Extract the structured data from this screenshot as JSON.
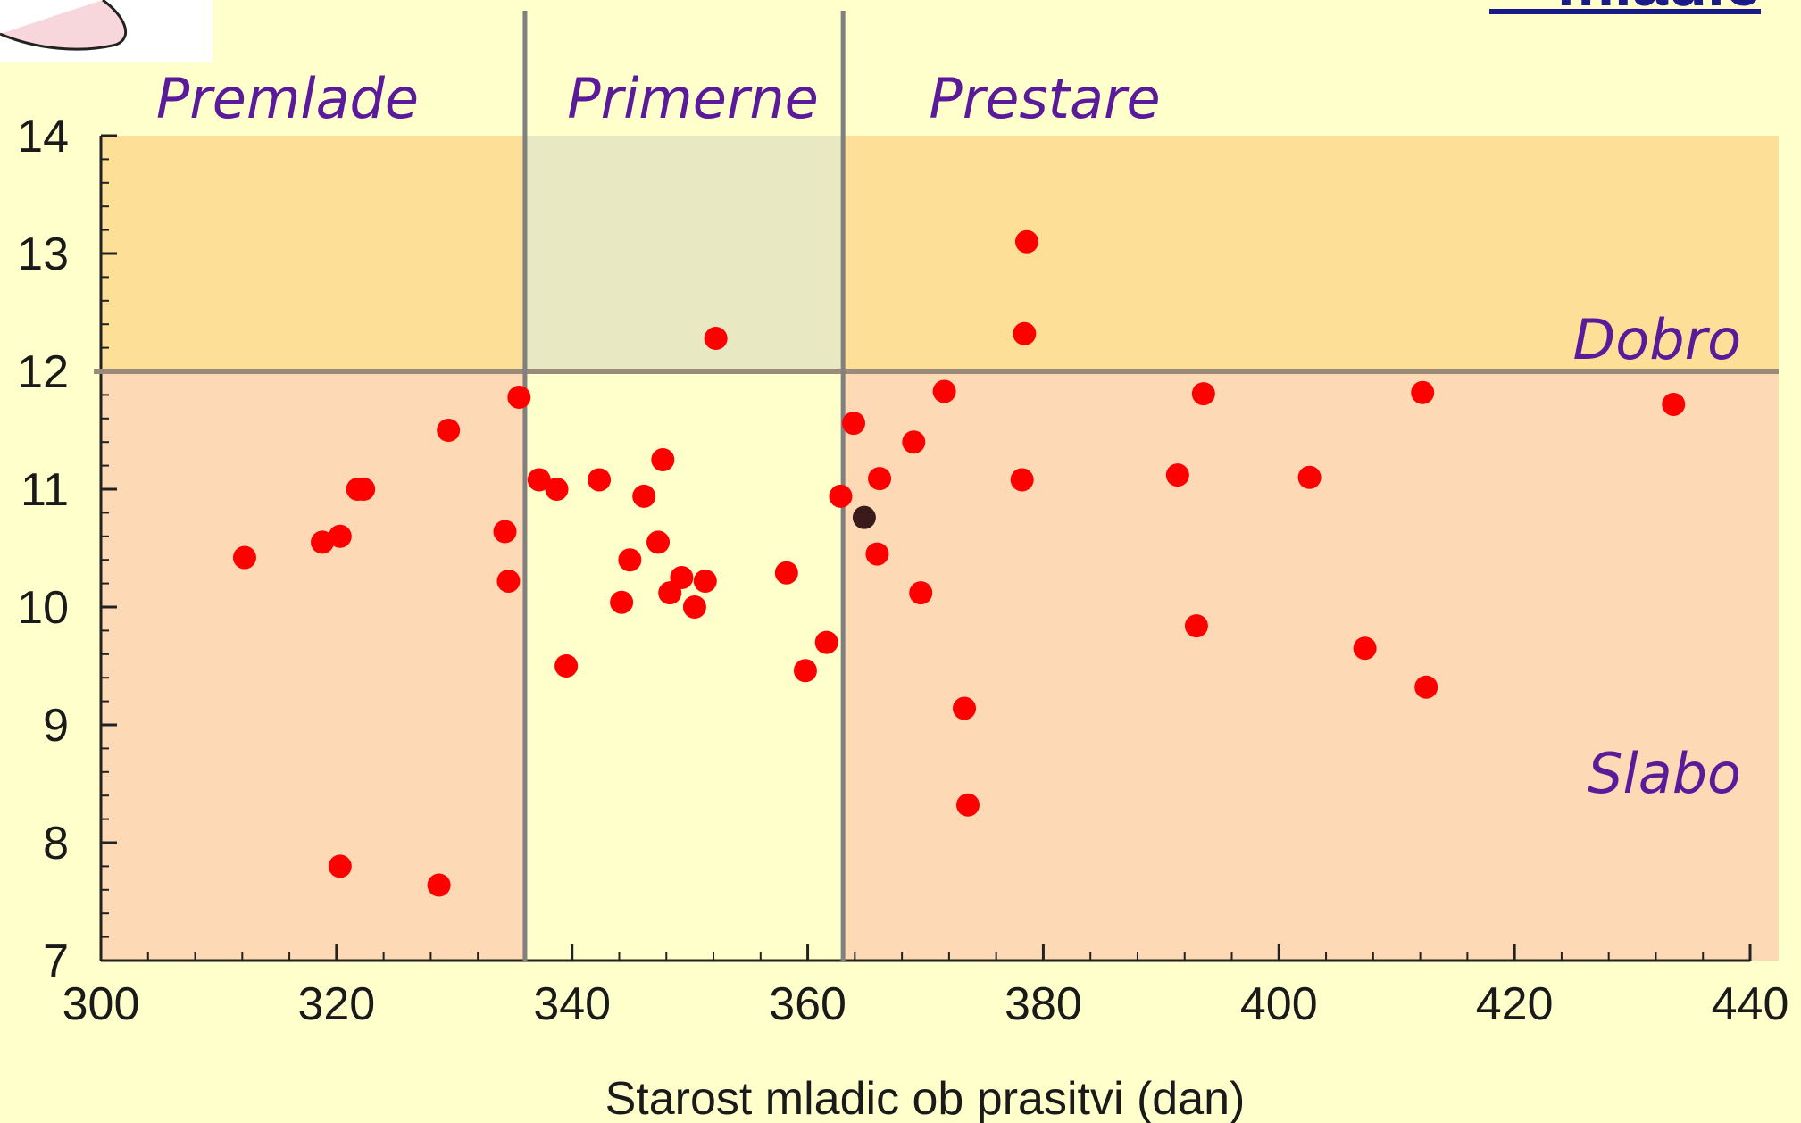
{
  "chart_data": {
    "type": "scatter",
    "title": "",
    "corner_title_fragment": "mladic",
    "xlabel": "Starost mladic ob prasitvi (dan)",
    "ylabel": "",
    "xlim": [
      300,
      440
    ],
    "ylim": [
      7,
      14
    ],
    "x_ticks": [
      "300",
      "320",
      "340",
      "360",
      "380",
      "400",
      "420",
      "440"
    ],
    "y_ticks": [
      "7",
      "8",
      "9",
      "10",
      "11",
      "12",
      "13",
      "14"
    ],
    "zones": {
      "x_bounds": [
        336,
        363
      ],
      "y_bound": 12,
      "column_labels": [
        "Premlade",
        "Primerne",
        "Prestare"
      ],
      "row_labels": {
        "upper": "Dobro",
        "lower": "Slabo"
      },
      "colors": {
        "upper": "#fddf98",
        "upper_optimal": "#e8e9c3",
        "lower": "#fdd9b5",
        "lower_optimal": "#ffffcc",
        "background": "#ffffcc",
        "divider": "#808080",
        "threshold": "#9a8a7a"
      }
    },
    "series": [
      {
        "color": "#ff0000",
        "points": [
          [
            312.2,
            10.42
          ],
          [
            318.8,
            10.55
          ],
          [
            320.3,
            10.6
          ],
          [
            321.8,
            11.0
          ],
          [
            322.3,
            11.0
          ],
          [
            329.5,
            11.5
          ],
          [
            334.3,
            10.64
          ],
          [
            334.6,
            10.22
          ],
          [
            335.5,
            11.78
          ],
          [
            320.3,
            7.8
          ],
          [
            328.7,
            7.64
          ],
          [
            337.2,
            11.08
          ],
          [
            338.7,
            11.0
          ],
          [
            339.5,
            9.5
          ],
          [
            342.3,
            11.08
          ],
          [
            344.2,
            10.04
          ],
          [
            344.9,
            10.4
          ],
          [
            346.1,
            10.94
          ],
          [
            347.3,
            10.55
          ],
          [
            347.7,
            11.25
          ],
          [
            348.3,
            10.12
          ],
          [
            349.3,
            10.25
          ],
          [
            350.4,
            10.0
          ],
          [
            351.3,
            10.22
          ],
          [
            352.2,
            12.28
          ],
          [
            358.2,
            10.29
          ],
          [
            359.8,
            9.46
          ],
          [
            361.6,
            9.7
          ],
          [
            362.8,
            10.94
          ],
          [
            363.9,
            11.56
          ],
          [
            365.9,
            10.45
          ],
          [
            366.1,
            11.09
          ],
          [
            369.0,
            11.4
          ],
          [
            369.6,
            10.12
          ],
          [
            371.6,
            11.83
          ],
          [
            373.3,
            9.14
          ],
          [
            373.6,
            8.32
          ],
          [
            378.2,
            11.08
          ],
          [
            378.4,
            12.32
          ],
          [
            378.6,
            13.1
          ],
          [
            391.4,
            11.12
          ],
          [
            393.0,
            9.84
          ],
          [
            393.6,
            11.81
          ],
          [
            402.6,
            11.1
          ],
          [
            407.3,
            9.65
          ],
          [
            412.2,
            11.82
          ],
          [
            412.5,
            9.32
          ],
          [
            433.5,
            11.72
          ]
        ]
      },
      {
        "color": "#3a1a1a",
        "points": [
          [
            364.8,
            10.76
          ]
        ]
      }
    ]
  }
}
